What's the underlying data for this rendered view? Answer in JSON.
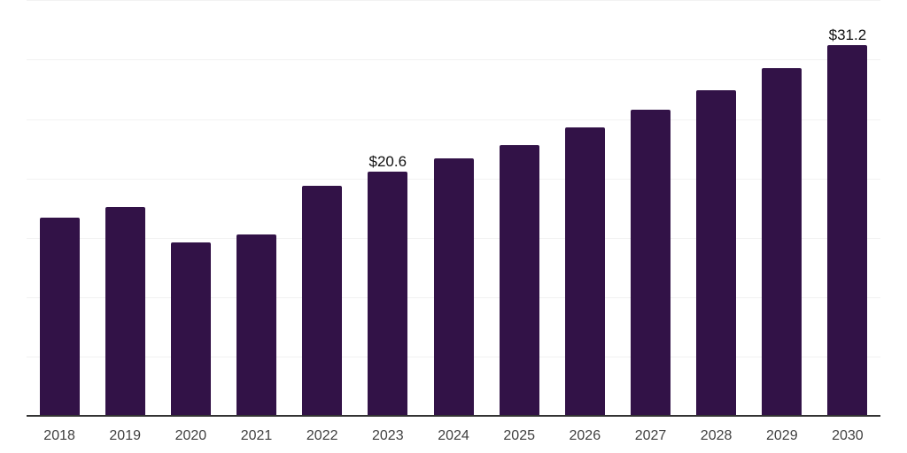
{
  "chart_data": {
    "type": "bar",
    "categories": [
      "2018",
      "2019",
      "2020",
      "2021",
      "2022",
      "2023",
      "2024",
      "2025",
      "2026",
      "2027",
      "2028",
      "2029",
      "2030"
    ],
    "values": [
      16.7,
      17.6,
      14.6,
      15.3,
      19.4,
      20.6,
      21.7,
      22.8,
      24.3,
      25.8,
      27.4,
      29.3,
      31.2
    ],
    "data_labels": {
      "2023": "$20.6",
      "2030": "$31.2"
    },
    "title": "",
    "xlabel": "",
    "ylabel": "",
    "ylim": [
      0,
      35
    ],
    "gridline_step": 5,
    "grid": true,
    "legend": "none",
    "y_axis_tick_labels_visible": false
  },
  "colors": {
    "bar": "#321247",
    "gridline": "#f2f2f2",
    "axis_line": "#333333",
    "x_tick_label": "#404040",
    "data_label": "#111111",
    "background": "#ffffff"
  }
}
